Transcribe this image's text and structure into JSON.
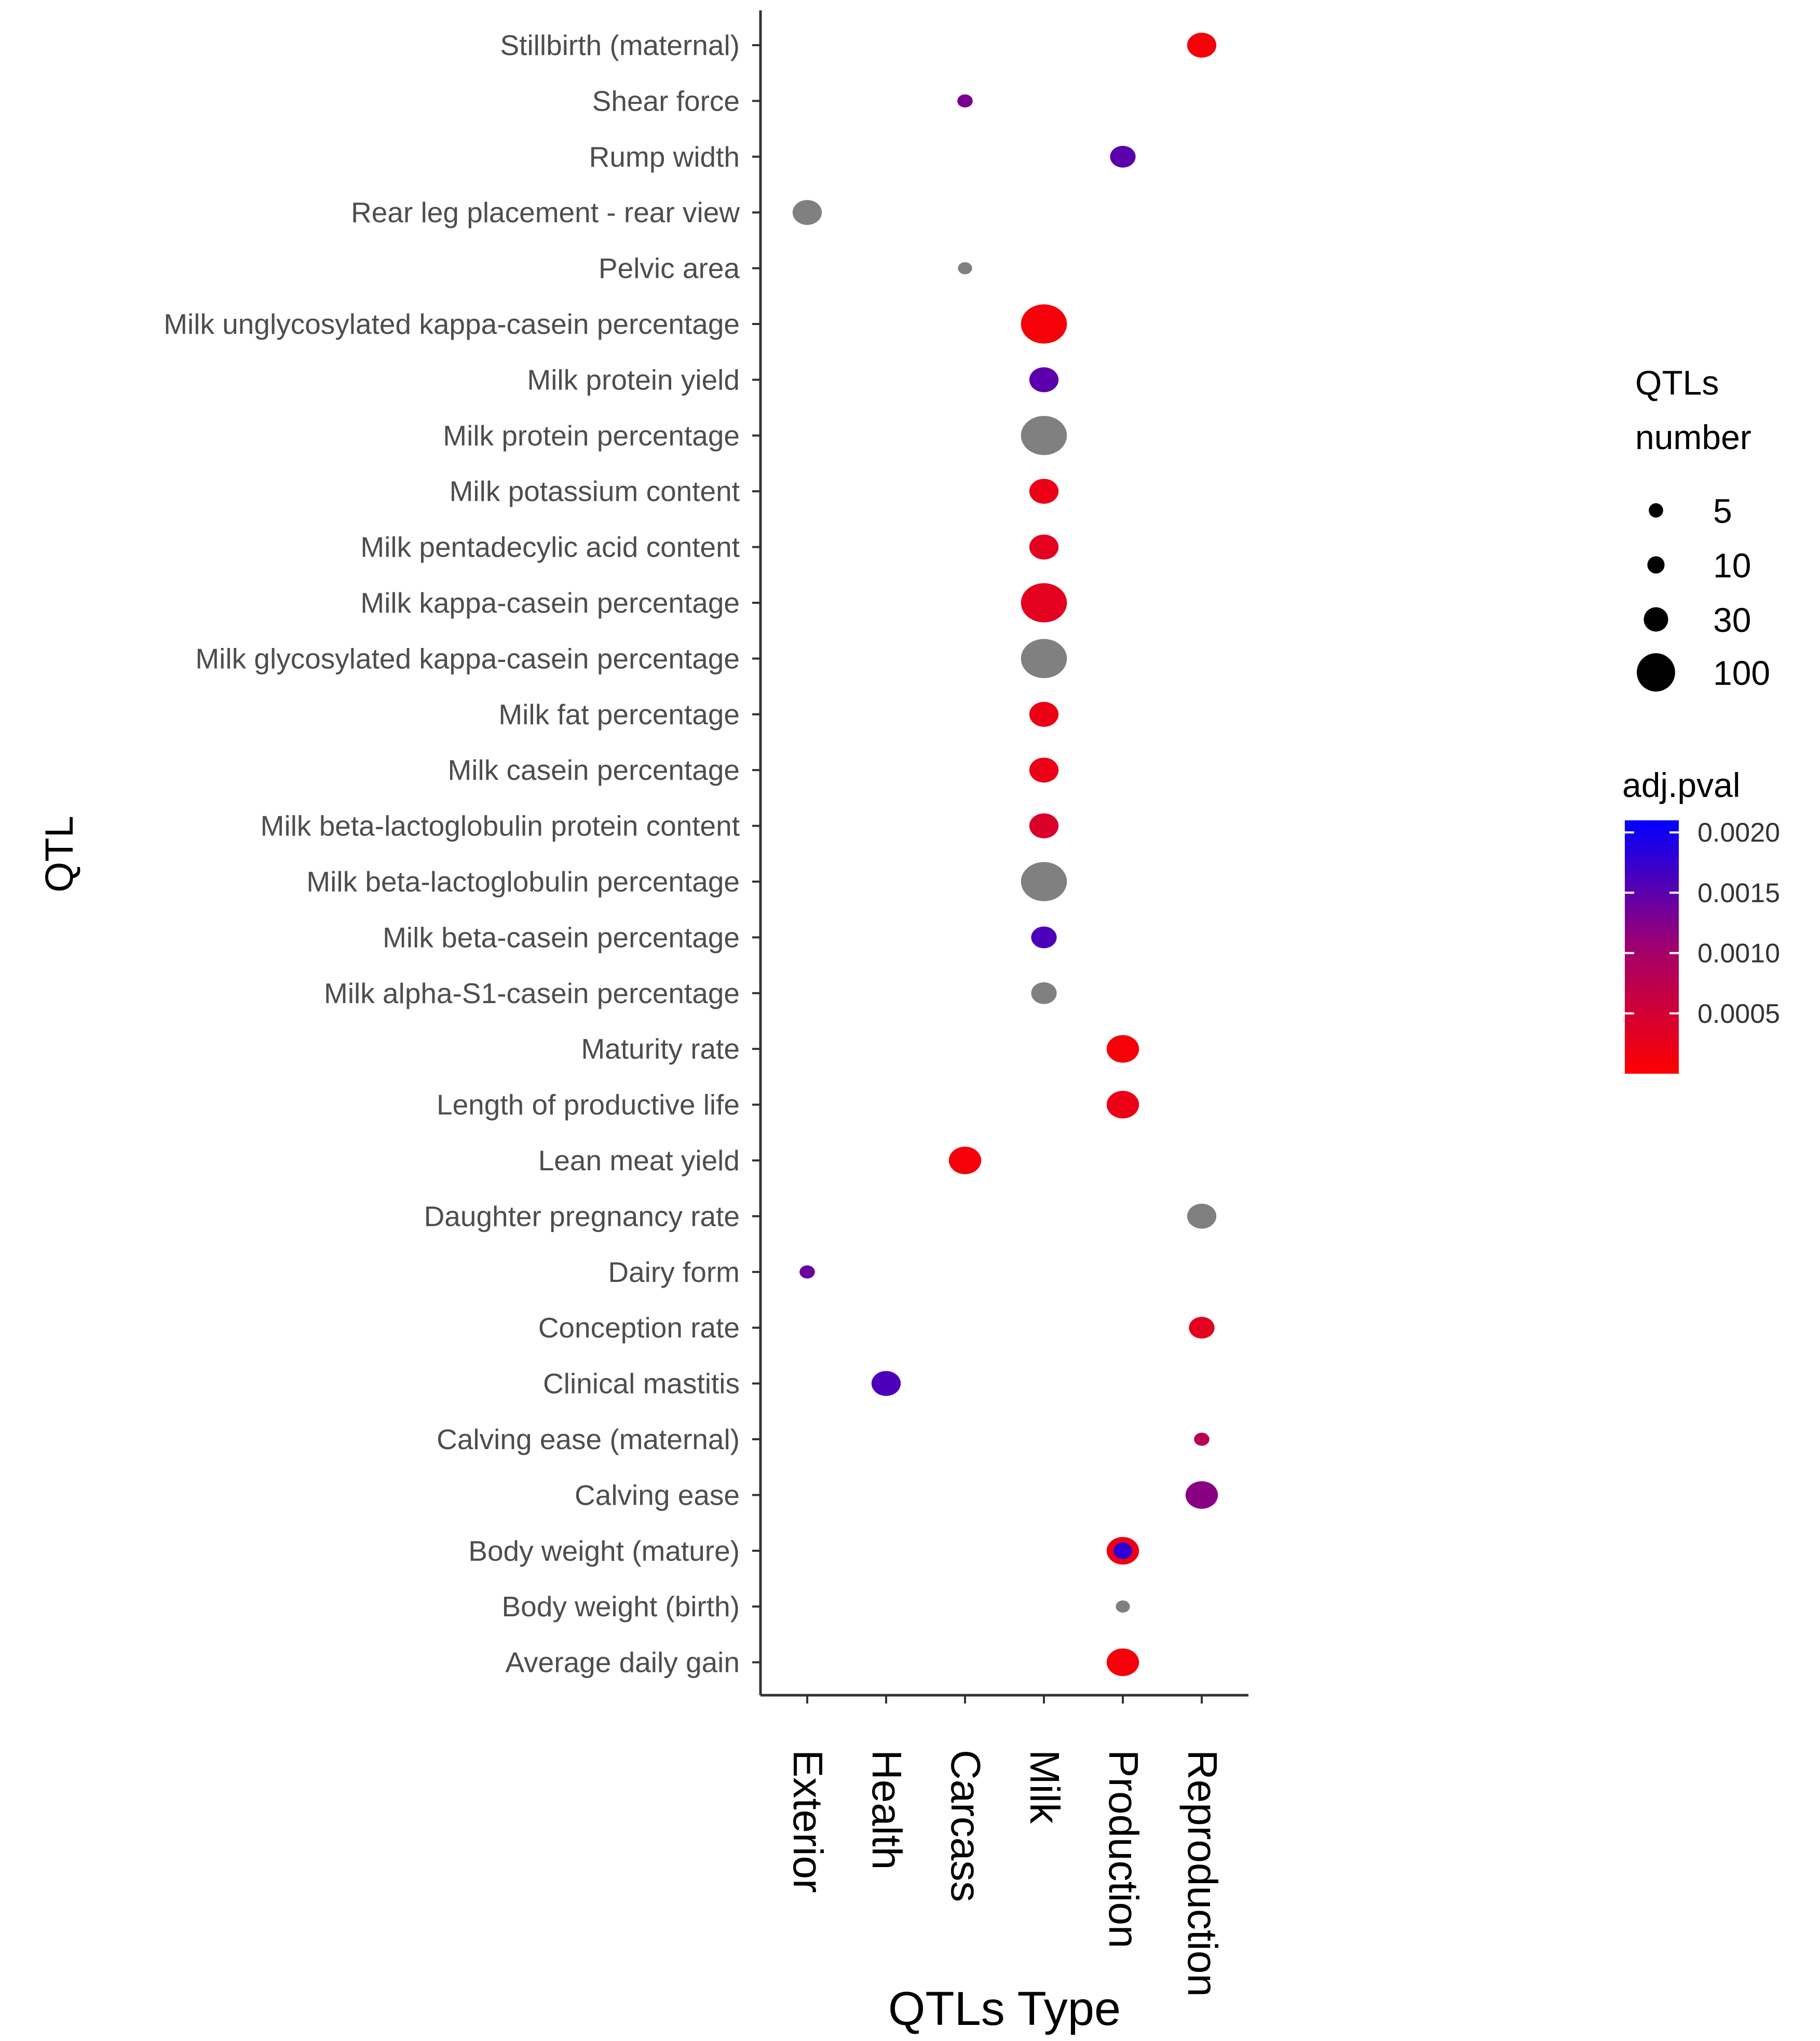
{
  "chart_data": {
    "type": "scatter",
    "xlabel": "QTLs Type",
    "ylabel": "QTL",
    "categories_x": [
      "Exterior",
      "Health",
      "Carcass",
      "Milk",
      "Production",
      "Reproduction"
    ],
    "categories_y": [
      "Stillbirth (maternal)",
      "Shear force",
      "Rump width",
      "Rear leg placement - rear view",
      "Pelvic area",
      "Milk unglycosylated kappa-casein percentage",
      "Milk protein yield",
      "Milk protein percentage",
      "Milk potassium content",
      "Milk pentadecylic acid content",
      "Milk kappa-casein percentage",
      "Milk glycosylated kappa-casein percentage",
      "Milk fat percentage",
      "Milk casein percentage",
      "Milk beta-lactoglobulin protein content",
      "Milk beta-lactoglobulin percentage",
      "Milk beta-casein percentage",
      "Milk alpha-S1-casein percentage",
      "Maturity rate",
      "Length of productive life",
      "Lean meat yield",
      "Daughter pregnancy rate",
      "Dairy form",
      "Conception rate",
      "Clinical mastitis",
      "Calving ease (maternal)",
      "Calving ease",
      "Body weight (mature)",
      "Body weight (birth)",
      "Average daily gain"
    ],
    "points": [
      {
        "qtl": "Stillbirth (maternal)",
        "type": "Reproduction",
        "qtls_number": 30,
        "adj_pval": 0.0001
      },
      {
        "qtl": "Shear force",
        "type": "Carcass",
        "qtls_number": 3,
        "adj_pval": 0.0013
      },
      {
        "qtl": "Rump width",
        "type": "Production",
        "qtls_number": 20,
        "adj_pval": 0.0015
      },
      {
        "qtl": "Rear leg placement - rear view",
        "type": "Exterior",
        "qtls_number": 30,
        "adj_pval": null
      },
      {
        "qtl": "Pelvic area",
        "type": "Carcass",
        "qtls_number": 2,
        "adj_pval": null
      },
      {
        "qtl": "Milk unglycosylated kappa-casein percentage",
        "type": "Milk",
        "qtls_number": 100,
        "adj_pval": 0.0001
      },
      {
        "qtl": "Milk protein yield",
        "type": "Milk",
        "qtls_number": 30,
        "adj_pval": 0.0015
      },
      {
        "qtl": "Milk protein percentage",
        "type": "Milk",
        "qtls_number": 100,
        "adj_pval": null
      },
      {
        "qtl": "Milk potassium content",
        "type": "Milk",
        "qtls_number": 30,
        "adj_pval": 0.0002
      },
      {
        "qtl": "Milk pentadecylic acid content",
        "type": "Milk",
        "qtls_number": 30,
        "adj_pval": 0.0003
      },
      {
        "qtl": "Milk kappa-casein percentage",
        "type": "Milk",
        "qtls_number": 100,
        "adj_pval": 0.0003
      },
      {
        "qtl": "Milk glycosylated kappa-casein percentage",
        "type": "Milk",
        "qtls_number": 100,
        "adj_pval": null
      },
      {
        "qtl": "Milk fat percentage",
        "type": "Milk",
        "qtls_number": 30,
        "adj_pval": 0.0002
      },
      {
        "qtl": "Milk casein percentage",
        "type": "Milk",
        "qtls_number": 30,
        "adj_pval": 0.0002
      },
      {
        "qtl": "Milk beta-lactoglobulin protein content",
        "type": "Milk",
        "qtls_number": 30,
        "adj_pval": 0.0004
      },
      {
        "qtl": "Milk beta-lactoglobulin percentage",
        "type": "Milk",
        "qtls_number": 100,
        "adj_pval": null
      },
      {
        "qtl": "Milk beta-casein percentage",
        "type": "Milk",
        "qtls_number": 20,
        "adj_pval": 0.0016
      },
      {
        "qtl": "Milk alpha-S1-casein percentage",
        "type": "Milk",
        "qtls_number": 20,
        "adj_pval": null
      },
      {
        "qtl": "Maturity rate",
        "type": "Production",
        "qtls_number": 40,
        "adj_pval": 0.0001
      },
      {
        "qtl": "Length of productive life",
        "type": "Production",
        "qtls_number": 40,
        "adj_pval": 0.0002
      },
      {
        "qtl": "Lean meat yield",
        "type": "Carcass",
        "qtls_number": 40,
        "adj_pval": 0.0001
      },
      {
        "qtl": "Daughter pregnancy rate",
        "type": "Reproduction",
        "qtls_number": 30,
        "adj_pval": null
      },
      {
        "qtl": "Dairy form",
        "type": "Exterior",
        "qtls_number": 3,
        "adj_pval": 0.0014
      },
      {
        "qtl": "Conception rate",
        "type": "Reproduction",
        "qtls_number": 20,
        "adj_pval": 0.0003
      },
      {
        "qtl": "Clinical mastitis",
        "type": "Health",
        "qtls_number": 30,
        "adj_pval": 0.0016
      },
      {
        "qtl": "Calving ease (maternal)",
        "type": "Reproduction",
        "qtls_number": 3,
        "adj_pval": 0.0008
      },
      {
        "qtl": "Calving ease",
        "type": "Reproduction",
        "qtls_number": 40,
        "adj_pval": 0.0012
      },
      {
        "qtl": "Body weight (mature)",
        "type": "Production",
        "qtls_number": 40,
        "adj_pval": 0.0002,
        "inner_adj_pval": 0.0018
      },
      {
        "qtl": "Body weight (birth)",
        "type": "Production",
        "qtls_number": 2,
        "adj_pval": null
      },
      {
        "qtl": "Average daily gain",
        "type": "Production",
        "qtls_number": 40,
        "adj_pval": 0.0001
      }
    ],
    "size_legend": {
      "title_line1": "QTLs",
      "title_line2": "number",
      "breaks": [
        5,
        10,
        30,
        100
      ],
      "labels": [
        "5",
        "10",
        "30",
        "100"
      ]
    },
    "color_legend": {
      "title": "adj.pval",
      "range": [
        0,
        0.0021
      ],
      "breaks": [
        0.002,
        0.0015,
        0.001,
        0.0005
      ],
      "labels": [
        "0.0020",
        "0.0015",
        "0.0010",
        "0.0005"
      ],
      "low_color": "#ff0000",
      "high_color": "#0000ff",
      "na_color": "#808080"
    }
  }
}
